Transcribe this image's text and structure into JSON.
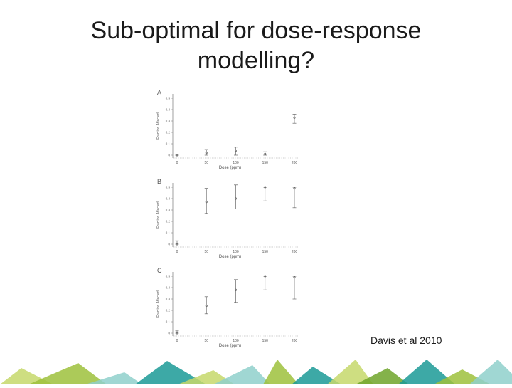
{
  "slide": {
    "title_line1": "Sub-optimal for dose-response",
    "title_line2": "modelling?",
    "citation": "Davis et al 2010"
  },
  "colors": {
    "green_light": "#c6d86b",
    "green_mid": "#9dc13c",
    "green_dark": "#6fa52a",
    "teal": "#1b9a96",
    "teal_light": "#8fd0cb"
  },
  "chart_data": [
    {
      "type": "scatter",
      "panel_label": "A",
      "xlabel": "Dose (ppm)",
      "ylabel": "Fraction Affected",
      "x": [
        0,
        50,
        100,
        150,
        200
      ],
      "y": [
        0.0,
        0.02,
        0.04,
        0.01,
        0.33
      ],
      "err_low": [
        0.0,
        0.0,
        0.0,
        0.0,
        0.28
      ],
      "err_high": [
        0.0,
        0.05,
        0.07,
        0.03,
        0.36
      ],
      "x_ticks": [
        "0",
        "50",
        "100",
        "150",
        "200"
      ],
      "y_ticks": [
        "0",
        "0.1",
        "0.2",
        "0.3",
        "0.4",
        "0.5"
      ],
      "xlim": [
        0,
        200
      ],
      "ylim": [
        0,
        0.5
      ]
    },
    {
      "type": "scatter",
      "panel_label": "B",
      "xlabel": "Dose (ppm)",
      "ylabel": "Fraction Affected",
      "x": [
        0,
        50,
        100,
        150,
        200
      ],
      "y": [
        0.0,
        0.37,
        0.4,
        0.5,
        0.49
      ],
      "err_low": [
        0.0,
        0.27,
        0.31,
        0.38,
        0.32
      ],
      "err_high": [
        0.03,
        0.49,
        0.52,
        0.5,
        0.5
      ],
      "x_ticks": [
        "0",
        "50",
        "100",
        "150",
        "200"
      ],
      "y_ticks": [
        "0",
        "0.1",
        "0.2",
        "0.3",
        "0.4",
        "0.5"
      ],
      "xlim": [
        0,
        200
      ],
      "ylim": [
        0,
        0.5
      ]
    },
    {
      "type": "scatter",
      "panel_label": "C",
      "xlabel": "Dose (ppm)",
      "ylabel": "Fraction Affected",
      "x": [
        0,
        50,
        100,
        150,
        200
      ],
      "y": [
        0.0,
        0.24,
        0.38,
        0.5,
        0.49
      ],
      "err_low": [
        0.0,
        0.17,
        0.27,
        0.38,
        0.3
      ],
      "err_high": [
        0.02,
        0.32,
        0.47,
        0.5,
        0.5
      ],
      "x_ticks": [
        "0",
        "50",
        "100",
        "150",
        "200"
      ],
      "y_ticks": [
        "0",
        "0.1",
        "0.2",
        "0.3",
        "0.4",
        "0.5"
      ],
      "xlim": [
        0,
        200
      ],
      "ylim": [
        0,
        0.5
      ]
    }
  ]
}
